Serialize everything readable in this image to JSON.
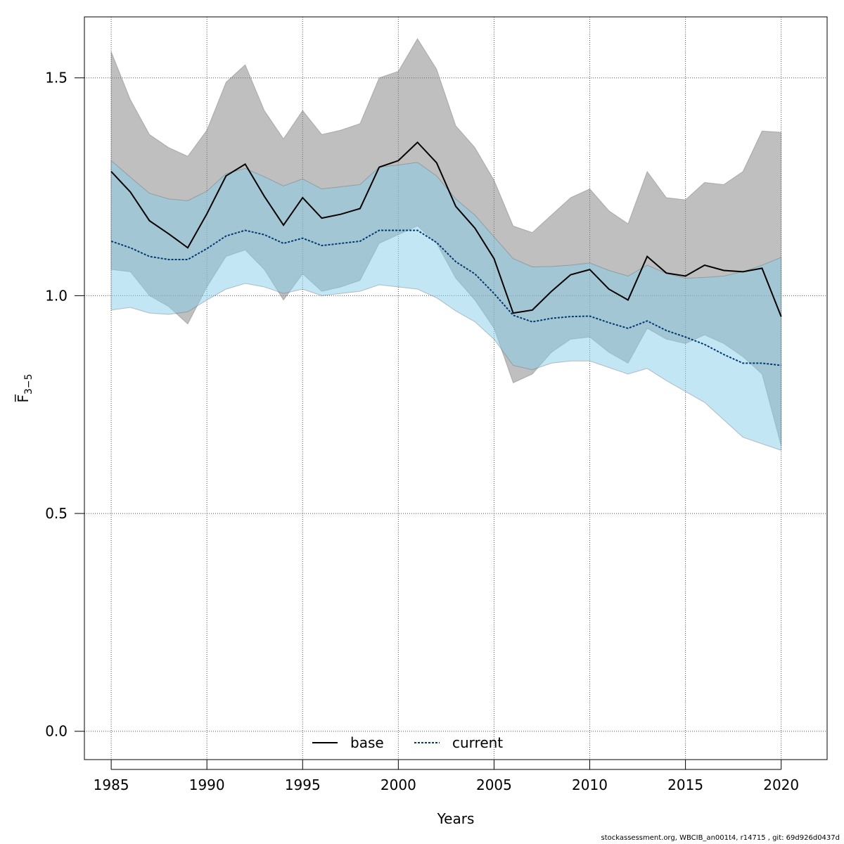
{
  "chart_data": {
    "type": "line",
    "xlabel": "Years",
    "ylabel": "F̅",
    "ylabel_sub": "3−5",
    "xlim": [
      1983.6,
      2022.4
    ],
    "ylim": [
      -0.065,
      1.64
    ],
    "x_ticks": [
      1985,
      1990,
      1995,
      2000,
      2005,
      2010,
      2015,
      2020
    ],
    "y_ticks": [
      0.0,
      0.5,
      1.0,
      1.5
    ],
    "y_tick_labels": [
      "0.0",
      "0.5",
      "1.0",
      "1.5"
    ],
    "grid": true,
    "legend_position": "bottom-center",
    "x": [
      1985,
      1986,
      1987,
      1988,
      1989,
      1990,
      1991,
      1992,
      1993,
      1994,
      1995,
      1996,
      1997,
      1998,
      1999,
      2000,
      2001,
      2002,
      2003,
      2004,
      2005,
      2006,
      2007,
      2008,
      2009,
      2010,
      2011,
      2012,
      2013,
      2014,
      2015,
      2016,
      2017,
      2018,
      2019,
      2020
    ],
    "series": [
      {
        "name": "base",
        "color": "#000000",
        "band_color": "rgba(128,128,128,0.5)",
        "values": [
          1.285,
          1.238,
          1.172,
          1.142,
          1.11,
          1.188,
          1.275,
          1.302,
          1.228,
          1.162,
          1.225,
          1.178,
          1.187,
          1.2,
          1.295,
          1.31,
          1.352,
          1.305,
          1.205,
          1.155,
          1.085,
          0.96,
          0.967,
          1.01,
          1.048,
          1.06,
          1.015,
          0.99,
          1.09,
          1.052,
          1.045,
          1.07,
          1.058,
          1.055,
          1.063,
          0.952
        ],
        "lower": [
          1.06,
          1.055,
          1.0,
          0.975,
          0.935,
          1.02,
          1.09,
          1.105,
          1.06,
          0.99,
          1.05,
          1.01,
          1.02,
          1.035,
          1.12,
          1.14,
          1.16,
          1.12,
          1.04,
          0.99,
          0.925,
          0.8,
          0.82,
          0.87,
          0.9,
          0.905,
          0.87,
          0.845,
          0.925,
          0.9,
          0.89,
          0.91,
          0.89,
          0.86,
          0.82,
          0.655
        ],
        "upper": [
          1.56,
          1.45,
          1.37,
          1.34,
          1.32,
          1.38,
          1.49,
          1.53,
          1.425,
          1.36,
          1.425,
          1.37,
          1.38,
          1.395,
          1.5,
          1.515,
          1.59,
          1.52,
          1.39,
          1.34,
          1.265,
          1.16,
          1.145,
          1.185,
          1.225,
          1.245,
          1.195,
          1.165,
          1.285,
          1.225,
          1.22,
          1.26,
          1.255,
          1.285,
          1.378,
          1.375
        ]
      },
      {
        "name": "current",
        "color": "#003a70",
        "band_color": "rgba(135,206,235,0.5)",
        "values": [
          1.125,
          1.11,
          1.09,
          1.083,
          1.083,
          1.108,
          1.137,
          1.15,
          1.14,
          1.12,
          1.132,
          1.115,
          1.12,
          1.125,
          1.15,
          1.15,
          1.15,
          1.122,
          1.078,
          1.05,
          1.005,
          0.955,
          0.94,
          0.948,
          0.952,
          0.953,
          0.938,
          0.925,
          0.942,
          0.92,
          0.905,
          0.888,
          0.865,
          0.845,
          0.845,
          0.84
        ],
        "lower": [
          0.967,
          0.973,
          0.96,
          0.957,
          0.963,
          0.99,
          1.015,
          1.028,
          1.02,
          1.005,
          1.015,
          1.0,
          1.005,
          1.01,
          1.025,
          1.02,
          1.015,
          0.995,
          0.965,
          0.94,
          0.9,
          0.84,
          0.83,
          0.845,
          0.85,
          0.85,
          0.835,
          0.82,
          0.833,
          0.805,
          0.78,
          0.755,
          0.715,
          0.675,
          0.66,
          0.645
        ],
        "upper": [
          1.31,
          1.272,
          1.235,
          1.222,
          1.218,
          1.24,
          1.28,
          1.292,
          1.273,
          1.252,
          1.268,
          1.245,
          1.25,
          1.255,
          1.295,
          1.3,
          1.306,
          1.275,
          1.222,
          1.185,
          1.135,
          1.085,
          1.066,
          1.067,
          1.07,
          1.075,
          1.058,
          1.045,
          1.07,
          1.051,
          1.04,
          1.042,
          1.045,
          1.055,
          1.07,
          1.088
        ]
      }
    ]
  },
  "footer": "stockassessment.org, WBCIB_an001t4, r14715 , git: 69d926d0437d"
}
